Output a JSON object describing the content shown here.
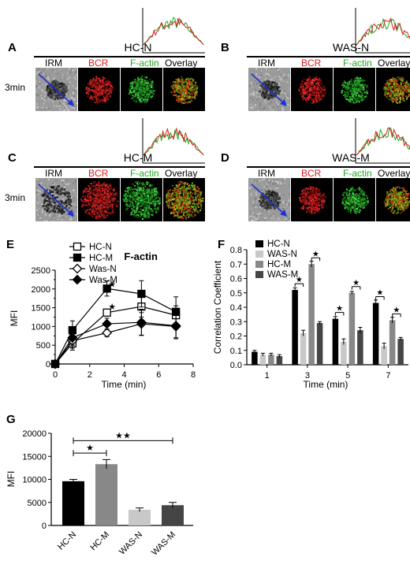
{
  "panels": {
    "A": {
      "letter": "A",
      "title": "HC-N",
      "time": "3min",
      "show_time": true,
      "channels": {
        "irm": "IRM",
        "bcr": "BCR",
        "factin": "F-actin",
        "overlay": "Overlay"
      }
    },
    "B": {
      "letter": "B",
      "title": "WAS-N",
      "time": "",
      "show_time": false,
      "channels": {
        "irm": "IRM",
        "bcr": "BCR",
        "factin": "F-actin",
        "overlay": "Overlay"
      }
    },
    "C": {
      "letter": "C",
      "title": "HC-M",
      "time": "3min",
      "show_time": true,
      "channels": {
        "irm": "IRM",
        "bcr": "BCR",
        "factin": "F-actin",
        "overlay": "Overlay"
      }
    },
    "D": {
      "letter": "D",
      "title": "WAS-M",
      "time": "",
      "show_time": false,
      "channels": {
        "irm": "IRM",
        "bcr": "BCR",
        "factin": "F-actin",
        "overlay": "Overlay"
      }
    }
  },
  "colors": {
    "bcr": "#d81e1e",
    "factin": "#22a822",
    "irm_arrow": "#1f2fd6"
  },
  "letters": {
    "E": "E",
    "F": "F",
    "G": "G"
  },
  "chart_data": [
    {
      "id": "E",
      "type": "line",
      "title": "F-actin",
      "xlabel": "Time (min)",
      "ylabel": "MFI",
      "xlim": [
        0,
        8
      ],
      "ylim": [
        0,
        2500
      ],
      "xticks": [
        0,
        2,
        4,
        6,
        8
      ],
      "yticks": [
        0,
        250,
        500,
        750,
        1000,
        1250,
        1500,
        1750,
        2000,
        2250,
        2500
      ],
      "x": [
        0,
        1,
        3,
        5,
        7
      ],
      "series": [
        {
          "name": "HC-N",
          "marker": "square-open",
          "values": [
            0,
            550,
            1370,
            1530,
            1300
          ],
          "err": [
            0,
            180,
            80,
            280,
            250
          ]
        },
        {
          "name": "HC-M",
          "marker": "square-filled",
          "values": [
            0,
            900,
            2010,
            1870,
            1390
          ],
          "err": [
            0,
            250,
            200,
            350,
            400
          ]
        },
        {
          "name": "Was-N",
          "marker": "diamond-open",
          "values": [
            0,
            620,
            830,
            1070,
            1000
          ],
          "err": [
            0,
            200,
            100,
            300,
            300
          ]
        },
        {
          "name": "Was-M",
          "marker": "diamond-filled",
          "values": [
            0,
            700,
            1070,
            1110,
            1020
          ],
          "err": [
            0,
            200,
            150,
            350,
            350
          ]
        }
      ],
      "annotations": [
        "★",
        "★"
      ],
      "legend": "top-left"
    },
    {
      "id": "F",
      "type": "bar",
      "xlabel": "Time (min)",
      "ylabel": "Correlation Coefficient",
      "ylim": [
        0,
        0.8
      ],
      "yticks": [
        0.0,
        0.1,
        0.2,
        0.3,
        0.4,
        0.5,
        0.6,
        0.7,
        0.8
      ],
      "categories": [
        "1",
        "3",
        "5",
        "7"
      ],
      "series": [
        {
          "name": "HC-N",
          "color": "#000000",
          "values": [
            0.09,
            0.52,
            0.32,
            0.43
          ],
          "err": [
            0.01,
            0.015,
            0.015,
            0.02
          ]
        },
        {
          "name": "WAS-N",
          "color": "#c8c8c8",
          "values": [
            0.07,
            0.22,
            0.16,
            0.13
          ],
          "err": [
            0.01,
            0.02,
            0.02,
            0.02
          ]
        },
        {
          "name": "HC-M",
          "color": "#888888",
          "values": [
            0.07,
            0.7,
            0.5,
            0.31
          ],
          "err": [
            0.01,
            0.02,
            0.01,
            0.02
          ]
        },
        {
          "name": "WAS-M",
          "color": "#454545",
          "values": [
            0.06,
            0.29,
            0.24,
            0.18
          ],
          "err": [
            0.01,
            0.01,
            0.02,
            0.01
          ]
        }
      ],
      "annotations": [
        "★"
      ],
      "legend": "top-left"
    },
    {
      "id": "G",
      "type": "bar",
      "ylabel": "MFI",
      "ylim": [
        0,
        20000
      ],
      "yticks": [
        0,
        5000,
        10000,
        15000,
        20000
      ],
      "categories": [
        "HC-N",
        "HC-M",
        "WAS-N",
        "WAS-M"
      ],
      "values": [
        9600,
        13300,
        3400,
        4400
      ],
      "err": [
        400,
        1000,
        400,
        600
      ],
      "colors": [
        "#000000",
        "#888888",
        "#c8c8c8",
        "#454545"
      ],
      "annotations": [
        "★",
        "★★"
      ]
    }
  ]
}
